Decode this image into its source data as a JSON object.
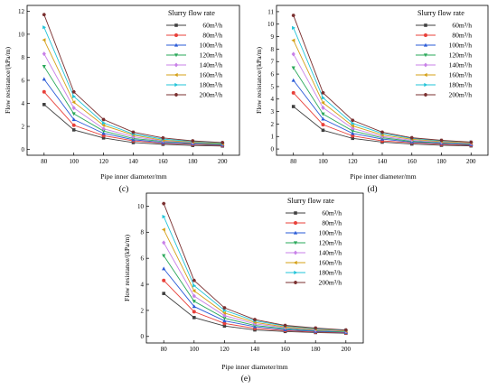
{
  "figure": {
    "panels": [
      "(c)",
      "(d)",
      "(e)"
    ]
  },
  "chart_data": [
    {
      "type": "line",
      "panel_label": "(c)",
      "xlabel": "Pipe inner diameter/mm",
      "ylabel": "Flow resistance/(kPa/m)",
      "x": [
        80,
        100,
        120,
        140,
        160,
        180,
        200
      ],
      "ylim": [
        -0.5,
        12.5
      ],
      "yticks": [
        0,
        2,
        4,
        6,
        8,
        10,
        12
      ],
      "legend_title": "Slurry flow rate",
      "legend_position": "top-right",
      "series": [
        {
          "name": "60m³/h",
          "color": "#3f3f3f",
          "marker": "square",
          "values": [
            3.9,
            1.7,
            1.0,
            0.6,
            0.45,
            0.35,
            0.3
          ]
        },
        {
          "name": "80m³/h",
          "color": "#e8403a",
          "marker": "circle",
          "values": [
            5.0,
            2.1,
            1.2,
            0.75,
            0.55,
            0.45,
            0.35
          ]
        },
        {
          "name": "100m³/h",
          "color": "#2a5bd7",
          "marker": "triangle-up",
          "values": [
            6.1,
            2.6,
            1.4,
            0.85,
            0.6,
            0.5,
            0.4
          ]
        },
        {
          "name": "120m³/h",
          "color": "#2aa85a",
          "marker": "triangle-down",
          "values": [
            7.2,
            3.1,
            1.6,
            0.95,
            0.7,
            0.55,
            0.45
          ]
        },
        {
          "name": "140m³/h",
          "color": "#c880e8",
          "marker": "diamond",
          "values": [
            8.3,
            3.6,
            1.8,
            1.1,
            0.75,
            0.6,
            0.5
          ]
        },
        {
          "name": "160m³/h",
          "color": "#d4a017",
          "marker": "triangle-left",
          "values": [
            9.5,
            4.1,
            2.1,
            1.25,
            0.8,
            0.65,
            0.5
          ]
        },
        {
          "name": "180m³/h",
          "color": "#22c4d8",
          "marker": "triangle-right",
          "values": [
            10.6,
            4.6,
            2.3,
            1.35,
            0.9,
            0.7,
            0.55
          ]
        },
        {
          "name": "200m³/h",
          "color": "#7a2f2f",
          "marker": "hexagon",
          "values": [
            11.7,
            5.0,
            2.6,
            1.5,
            1.0,
            0.75,
            0.6
          ]
        }
      ]
    },
    {
      "type": "line",
      "panel_label": "(d)",
      "xlabel": "Pipe inner diameter/mm",
      "ylabel": "Flow resistance/(kPa/m)",
      "x": [
        80,
        100,
        120,
        140,
        160,
        180,
        200
      ],
      "ylim": [
        -0.5,
        11.5
      ],
      "yticks": [
        0,
        1,
        2,
        3,
        4,
        5,
        6,
        7,
        8,
        9,
        10,
        11
      ],
      "legend_title": "Slurry flow rate",
      "legend_position": "top-right",
      "series": [
        {
          "name": "60m³/h",
          "color": "#3f3f3f",
          "marker": "square",
          "values": [
            3.4,
            1.5,
            0.85,
            0.55,
            0.4,
            0.3,
            0.25
          ]
        },
        {
          "name": "80m³/h",
          "color": "#e8403a",
          "marker": "circle",
          "values": [
            4.5,
            1.95,
            1.05,
            0.65,
            0.5,
            0.38,
            0.3
          ]
        },
        {
          "name": "100m³/h",
          "color": "#2a5bd7",
          "marker": "triangle-up",
          "values": [
            5.5,
            2.4,
            1.25,
            0.8,
            0.55,
            0.45,
            0.35
          ]
        },
        {
          "name": "120m³/h",
          "color": "#2aa85a",
          "marker": "triangle-down",
          "values": [
            6.5,
            2.8,
            1.45,
            0.9,
            0.62,
            0.5,
            0.4
          ]
        },
        {
          "name": "140m³/h",
          "color": "#c880e8",
          "marker": "diamond",
          "values": [
            7.6,
            3.3,
            1.65,
            1.0,
            0.7,
            0.55,
            0.45
          ]
        },
        {
          "name": "160m³/h",
          "color": "#d4a017",
          "marker": "triangle-left",
          "values": [
            8.7,
            3.7,
            1.85,
            1.12,
            0.78,
            0.6,
            0.5
          ]
        },
        {
          "name": "180m³/h",
          "color": "#22c4d8",
          "marker": "triangle-right",
          "values": [
            9.7,
            4.1,
            2.05,
            1.25,
            0.85,
            0.65,
            0.55
          ]
        },
        {
          "name": "200m³/h",
          "color": "#7a2f2f",
          "marker": "hexagon",
          "values": [
            10.7,
            4.5,
            2.3,
            1.35,
            0.9,
            0.7,
            0.55
          ]
        }
      ]
    },
    {
      "type": "line",
      "panel_label": "(e)",
      "xlabel": "Pipe inner diameter/mm",
      "ylabel": "Flow resistance/(kPa/m)",
      "x": [
        80,
        100,
        120,
        140,
        160,
        180,
        200
      ],
      "ylim": [
        -0.5,
        11.0
      ],
      "yticks": [
        0,
        2,
        4,
        6,
        8,
        10
      ],
      "legend_title": "Slurry flow rate",
      "legend_position": "top-right",
      "series": [
        {
          "name": "60m³/h",
          "color": "#3f3f3f",
          "marker": "square",
          "values": [
            3.3,
            1.45,
            0.8,
            0.5,
            0.38,
            0.3,
            0.25
          ]
        },
        {
          "name": "80m³/h",
          "color": "#e8403a",
          "marker": "circle",
          "values": [
            4.3,
            1.9,
            1.0,
            0.62,
            0.45,
            0.35,
            0.28
          ]
        },
        {
          "name": "100m³/h",
          "color": "#2a5bd7",
          "marker": "triangle-up",
          "values": [
            5.2,
            2.3,
            1.2,
            0.75,
            0.52,
            0.4,
            0.32
          ]
        },
        {
          "name": "120m³/h",
          "color": "#2aa85a",
          "marker": "triangle-down",
          "values": [
            6.2,
            2.7,
            1.4,
            0.85,
            0.6,
            0.45,
            0.35
          ]
        },
        {
          "name": "140m³/h",
          "color": "#c880e8",
          "marker": "diamond",
          "values": [
            7.2,
            3.1,
            1.6,
            0.97,
            0.67,
            0.5,
            0.4
          ]
        },
        {
          "name": "160m³/h",
          "color": "#d4a017",
          "marker": "triangle-left",
          "values": [
            8.2,
            3.5,
            1.8,
            1.08,
            0.73,
            0.55,
            0.43
          ]
        },
        {
          "name": "180m³/h",
          "color": "#22c4d8",
          "marker": "triangle-right",
          "values": [
            9.2,
            3.9,
            2.0,
            1.2,
            0.8,
            0.6,
            0.47
          ]
        },
        {
          "name": "200m³/h",
          "color": "#7a2f2f",
          "marker": "hexagon",
          "values": [
            10.2,
            4.3,
            2.2,
            1.3,
            0.85,
            0.65,
            0.5
          ]
        }
      ]
    }
  ]
}
